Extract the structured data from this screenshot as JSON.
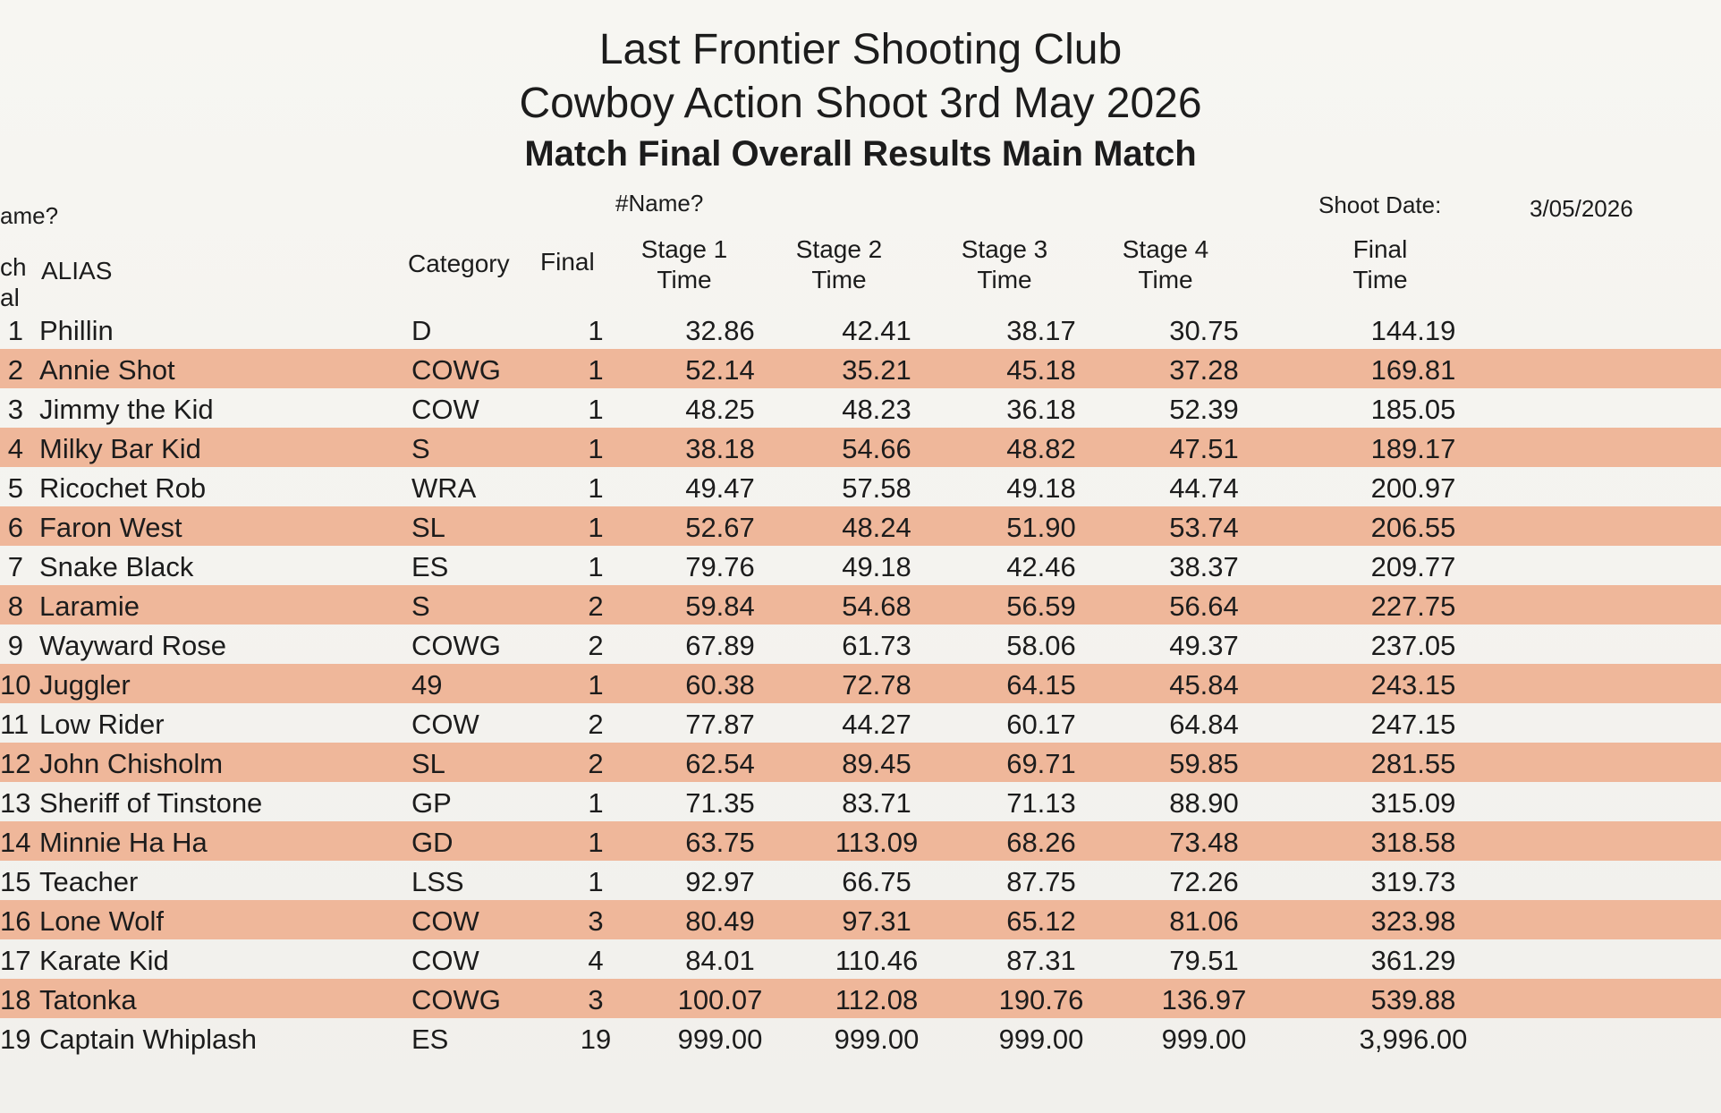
{
  "title": {
    "club": "Last Frontier Shooting Club",
    "event": "Cowboy Action Shoot 3rd May 2026",
    "subtitle": "Match Final Overall Results Main Match"
  },
  "meta": {
    "left_fragment": "ame?",
    "name_placeholder": "#Name?",
    "shoot_date_label": "Shoot Date:",
    "shoot_date_value": "3/05/2026"
  },
  "columns": {
    "rank_line1": "ch",
    "rank_line2": "al",
    "alias": "ALIAS",
    "category": "Category",
    "final": "Final",
    "stage1_line1": "Stage 1",
    "stage1_line2": "Time",
    "stage2_line1": "Stage 2",
    "stage2_line2": "Time",
    "stage3_line1": "Stage 3",
    "stage3_line2": "Time",
    "stage4_line1": "Stage 4",
    "stage4_line2": "Time",
    "final_time_line1": "Final",
    "final_time_line2": "Time"
  },
  "rows": [
    {
      "rank": "1",
      "alias": "Phillin",
      "category": "D",
      "final": "1",
      "s1": "32.86",
      "s2": "42.41",
      "s3": "38.17",
      "s4": "30.75",
      "total": "144.19"
    },
    {
      "rank": "2",
      "alias": "Annie Shot",
      "category": "COWG",
      "final": "1",
      "s1": "52.14",
      "s2": "35.21",
      "s3": "45.18",
      "s4": "37.28",
      "total": "169.81"
    },
    {
      "rank": "3",
      "alias": "Jimmy the Kid",
      "category": "COW",
      "final": "1",
      "s1": "48.25",
      "s2": "48.23",
      "s3": "36.18",
      "s4": "52.39",
      "total": "185.05"
    },
    {
      "rank": "4",
      "alias": "Milky Bar Kid",
      "category": "S",
      "final": "1",
      "s1": "38.18",
      "s2": "54.66",
      "s3": "48.82",
      "s4": "47.51",
      "total": "189.17"
    },
    {
      "rank": "5",
      "alias": "Ricochet Rob",
      "category": "WRA",
      "final": "1",
      "s1": "49.47",
      "s2": "57.58",
      "s3": "49.18",
      "s4": "44.74",
      "total": "200.97"
    },
    {
      "rank": "6",
      "alias": "Faron West",
      "category": "SL",
      "final": "1",
      "s1": "52.67",
      "s2": "48.24",
      "s3": "51.90",
      "s4": "53.74",
      "total": "206.55"
    },
    {
      "rank": "7",
      "alias": "Snake Black",
      "category": "ES",
      "final": "1",
      "s1": "79.76",
      "s2": "49.18",
      "s3": "42.46",
      "s4": "38.37",
      "total": "209.77"
    },
    {
      "rank": "8",
      "alias": "Laramie",
      "category": "S",
      "final": "2",
      "s1": "59.84",
      "s2": "54.68",
      "s3": "56.59",
      "s4": "56.64",
      "total": "227.75"
    },
    {
      "rank": "9",
      "alias": "Wayward Rose",
      "category": "COWG",
      "final": "2",
      "s1": "67.89",
      "s2": "61.73",
      "s3": "58.06",
      "s4": "49.37",
      "total": "237.05"
    },
    {
      "rank": "10",
      "alias": "Juggler",
      "category": "49",
      "final": "1",
      "s1": "60.38",
      "s2": "72.78",
      "s3": "64.15",
      "s4": "45.84",
      "total": "243.15"
    },
    {
      "rank": "11",
      "alias": "Low Rider",
      "category": "COW",
      "final": "2",
      "s1": "77.87",
      "s2": "44.27",
      "s3": "60.17",
      "s4": "64.84",
      "total": "247.15"
    },
    {
      "rank": "12",
      "alias": "John Chisholm",
      "category": "SL",
      "final": "2",
      "s1": "62.54",
      "s2": "89.45",
      "s3": "69.71",
      "s4": "59.85",
      "total": "281.55"
    },
    {
      "rank": "13",
      "alias": "Sheriff of Tinstone",
      "category": "GP",
      "final": "1",
      "s1": "71.35",
      "s2": "83.71",
      "s3": "71.13",
      "s4": "88.90",
      "total": "315.09"
    },
    {
      "rank": "14",
      "alias": "Minnie Ha Ha",
      "category": "GD",
      "final": "1",
      "s1": "63.75",
      "s2": "113.09",
      "s3": "68.26",
      "s4": "73.48",
      "total": "318.58"
    },
    {
      "rank": "15",
      "alias": "Teacher",
      "category": "LSS",
      "final": "1",
      "s1": "92.97",
      "s2": "66.75",
      "s3": "87.75",
      "s4": "72.26",
      "total": "319.73"
    },
    {
      "rank": "16",
      "alias": "Lone Wolf",
      "category": "COW",
      "final": "3",
      "s1": "80.49",
      "s2": "97.31",
      "s3": "65.12",
      "s4": "81.06",
      "total": "323.98"
    },
    {
      "rank": "17",
      "alias": "Karate Kid",
      "category": "COW",
      "final": "4",
      "s1": "84.01",
      "s2": "110.46",
      "s3": "87.31",
      "s4": "79.51",
      "total": "361.29"
    },
    {
      "rank": "18",
      "alias": "Tatonka",
      "category": "COWG",
      "final": "3",
      "s1": "100.07",
      "s2": "112.08",
      "s3": "190.76",
      "s4": "136.97",
      "total": "539.88"
    },
    {
      "rank": "19",
      "alias": "Captain Whiplash",
      "category": "ES",
      "final": "19",
      "s1": "999.00",
      "s2": "999.00",
      "s3": "999.00",
      "s4": "999.00",
      "total": "3,996.00"
    }
  ],
  "colors": {
    "row_shade": "#efb79a",
    "paper": "#f4f3ef",
    "ink": "#1c1c1c"
  }
}
